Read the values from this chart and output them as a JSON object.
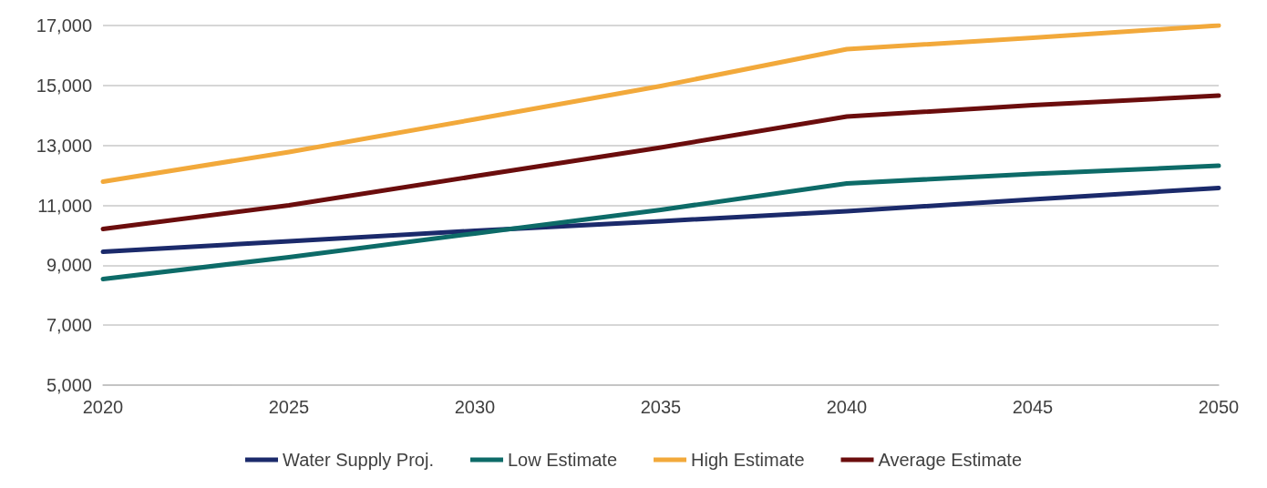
{
  "chart_data": {
    "type": "line",
    "categories": [
      "2020",
      "2025",
      "2030",
      "2035",
      "2040",
      "2045",
      "2050"
    ],
    "series": [
      {
        "name": "Water Supply Proj.",
        "color": "#1b2a6b",
        "values": [
          9450,
          9800,
          10150,
          10470,
          10800,
          11200,
          11580
        ]
      },
      {
        "name": "Low Estimate",
        "color": "#0d6b68",
        "values": [
          8540,
          9270,
          10060,
          10850,
          11730,
          12050,
          12320
        ]
      },
      {
        "name": "High Estimate",
        "color": "#f2a93b",
        "values": [
          11790,
          12780,
          13870,
          14980,
          16210,
          16590,
          17000
        ]
      },
      {
        "name": "Average Estimate",
        "color": "#6b0d0d",
        "values": [
          10210,
          11000,
          11970,
          12930,
          13960,
          14340,
          14660
        ]
      }
    ],
    "ylim": [
      5000,
      17000
    ],
    "yticks": [
      {
        "value": 5000,
        "label": "5,000"
      },
      {
        "value": 7000,
        "label": "7,000"
      },
      {
        "value": 9000,
        "label": "9,000"
      },
      {
        "value": 11000,
        "label": "11,000"
      },
      {
        "value": 13000,
        "label": "13,000"
      },
      {
        "value": 15000,
        "label": "15,000"
      },
      {
        "value": 17000,
        "label": "17,000"
      }
    ],
    "grid": "y",
    "legend": "bottom",
    "marker": "none",
    "line_style": "solid"
  }
}
